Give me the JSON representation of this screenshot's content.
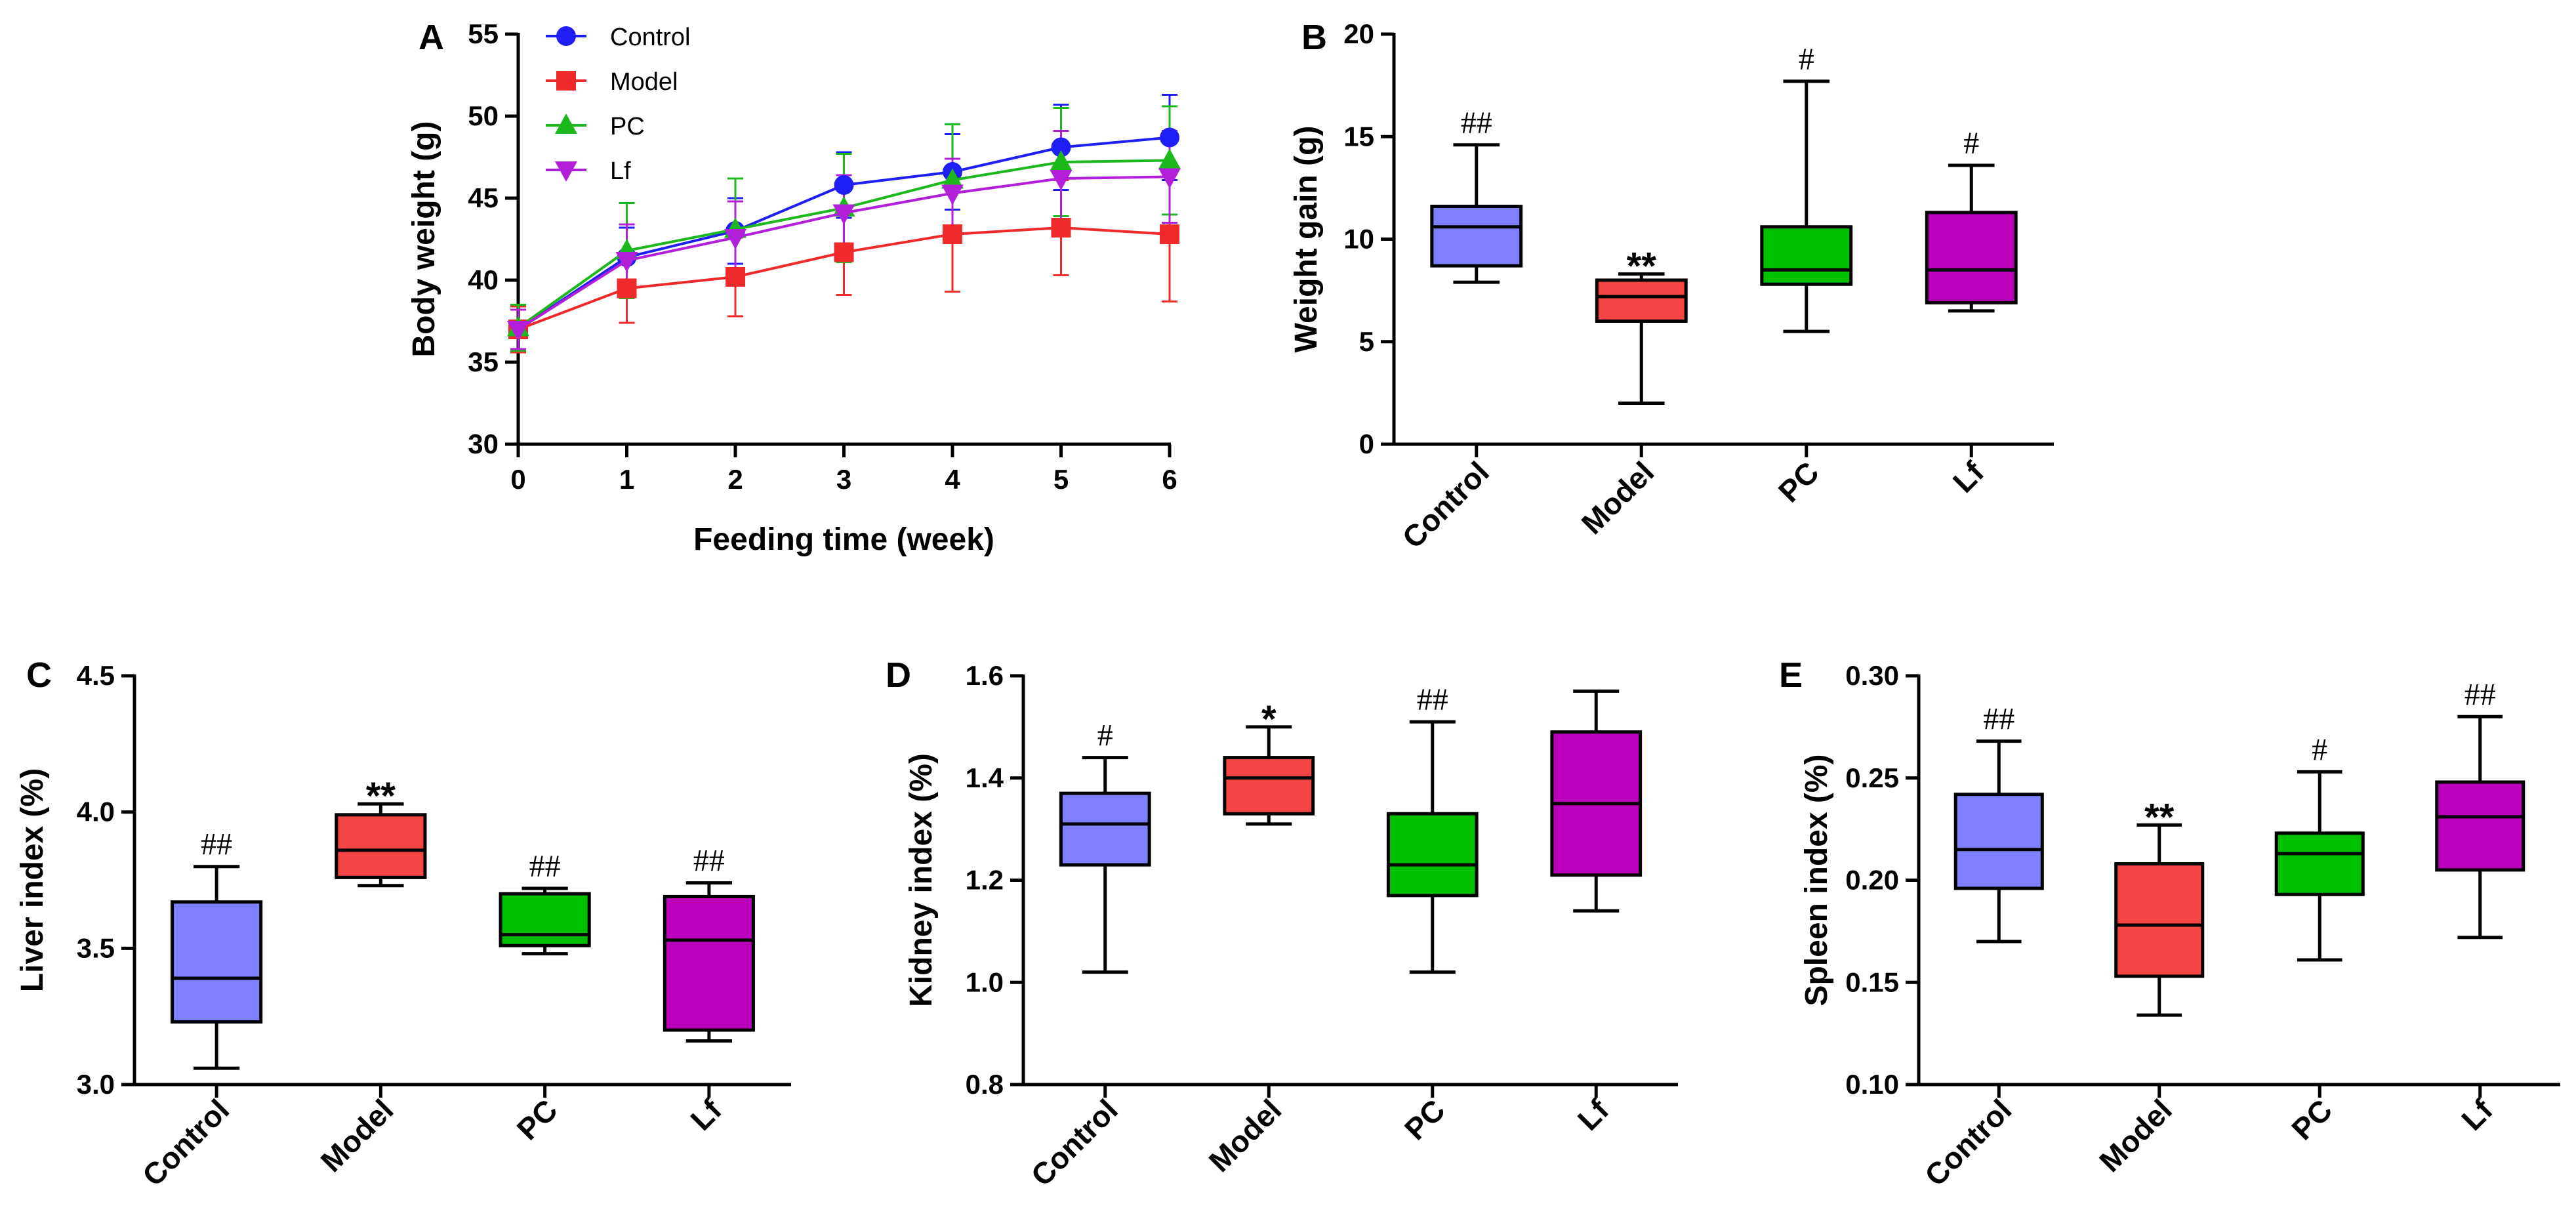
{
  "colors": {
    "Control_line": "#1F1FF5",
    "Model_line": "#EE2A2A",
    "PC_line": "#1DB81D",
    "Lf_line": "#B21FD9",
    "Control_box": "#8080FF",
    "Model_box": "#F54545",
    "PC_box": "#00C000",
    "Lf_box": "#BB00BB"
  },
  "chart_data": [
    {
      "id": "A",
      "panel_label": "A",
      "type": "line",
      "xlabel": "Feeding time (week)",
      "ylabel": "Body weight (g)",
      "xlim": [
        0,
        6
      ],
      "ylim": [
        30,
        55
      ],
      "xticks": [
        "0",
        "1",
        "2",
        "3",
        "4",
        "5",
        "6"
      ],
      "yticks": [
        "30",
        "35",
        "40",
        "45",
        "50",
        "55"
      ],
      "x": [
        0,
        1,
        2,
        3,
        4,
        5,
        6
      ],
      "legend_position": "top-left",
      "series": [
        {
          "name": "Control",
          "marker": "circle",
          "values": [
            37.0,
            41.4,
            43.0,
            45.8,
            46.6,
            48.1,
            48.7
          ],
          "errors": [
            1.2,
            1.8,
            2.0,
            2.0,
            2.3,
            2.6,
            2.6
          ]
        },
        {
          "name": "Model",
          "marker": "square",
          "values": [
            37.0,
            39.5,
            40.2,
            41.7,
            42.8,
            43.2,
            42.8
          ],
          "errors": [
            1.4,
            2.1,
            2.4,
            2.6,
            3.5,
            2.9,
            4.1
          ]
        },
        {
          "name": "PC",
          "marker": "triangle-up",
          "values": [
            37.1,
            41.8,
            43.1,
            44.4,
            46.1,
            47.2,
            47.3
          ],
          "errors": [
            1.4,
            2.9,
            3.1,
            3.3,
            3.4,
            3.3,
            3.3
          ]
        },
        {
          "name": "Lf",
          "marker": "triangle-down",
          "values": [
            37.0,
            41.2,
            42.6,
            44.1,
            45.3,
            46.2,
            46.3
          ],
          "errors": [
            1.2,
            2.2,
            2.2,
            2.3,
            2.1,
            2.9,
            2.8
          ]
        }
      ]
    },
    {
      "id": "B",
      "panel_label": "B",
      "type": "box",
      "ylabel": "Weight gain (g)",
      "ylim": [
        0,
        20
      ],
      "yticks": [
        "0",
        "5",
        "10",
        "15",
        "20"
      ],
      "categories": [
        "Control",
        "Model",
        "PC",
        "Lf"
      ],
      "boxes": [
        {
          "min": 7.9,
          "q1": 8.7,
          "median": 10.6,
          "q3": 11.6,
          "max": 14.6,
          "sig": "##"
        },
        {
          "min": 2.0,
          "q1": 6.0,
          "median": 7.2,
          "q3": 8.0,
          "max": 8.3,
          "sig": "**"
        },
        {
          "min": 5.5,
          "q1": 7.8,
          "median": 8.5,
          "q3": 10.6,
          "max": 17.7,
          "sig": "#"
        },
        {
          "min": 6.5,
          "q1": 6.9,
          "median": 8.5,
          "q3": 11.3,
          "max": 13.6,
          "sig": "#"
        }
      ]
    },
    {
      "id": "C",
      "panel_label": "C",
      "type": "box",
      "ylabel": "Liver index (%)",
      "ylim": [
        3.0,
        4.5
      ],
      "yticks": [
        "3.0",
        "3.5",
        "4.0",
        "4.5"
      ],
      "categories": [
        "Control",
        "Model",
        "PC",
        "Lf"
      ],
      "boxes": [
        {
          "min": 3.06,
          "q1": 3.23,
          "median": 3.39,
          "q3": 3.67,
          "max": 3.8,
          "sig": "##"
        },
        {
          "min": 3.73,
          "q1": 3.76,
          "median": 3.86,
          "q3": 3.99,
          "max": 4.03,
          "sig": "**"
        },
        {
          "min": 3.48,
          "q1": 3.51,
          "median": 3.55,
          "q3": 3.7,
          "max": 3.72,
          "sig": "##"
        },
        {
          "min": 3.16,
          "q1": 3.2,
          "median": 3.53,
          "q3": 3.69,
          "max": 3.74,
          "sig": "##"
        }
      ]
    },
    {
      "id": "D",
      "panel_label": "D",
      "type": "box",
      "ylabel": "Kidney index (%)",
      "ylim": [
        0.8,
        1.6
      ],
      "yticks": [
        "0.8",
        "1.0",
        "1.2",
        "1.4",
        "1.6"
      ],
      "categories": [
        "Control",
        "Model",
        "PC",
        "Lf"
      ],
      "boxes": [
        {
          "min": 1.02,
          "q1": 1.23,
          "median": 1.31,
          "q3": 1.37,
          "max": 1.44,
          "sig": "#"
        },
        {
          "min": 1.31,
          "q1": 1.33,
          "median": 1.4,
          "q3": 1.44,
          "max": 1.5,
          "sig": "*"
        },
        {
          "min": 1.02,
          "q1": 1.17,
          "median": 1.23,
          "q3": 1.33,
          "max": 1.51,
          "sig": "##"
        },
        {
          "min": 1.14,
          "q1": 1.21,
          "median": 1.35,
          "q3": 1.49,
          "max": 1.57,
          "sig": ""
        }
      ]
    },
    {
      "id": "E",
      "panel_label": "E",
      "type": "box",
      "ylabel": "Spleen index (%)",
      "ylim": [
        0.1,
        0.3
      ],
      "yticks": [
        "0.10",
        "0.15",
        "0.20",
        "0.25",
        "0.30"
      ],
      "categories": [
        "Control",
        "Model",
        "PC",
        "Lf"
      ],
      "boxes": [
        {
          "min": 0.17,
          "q1": 0.196,
          "median": 0.215,
          "q3": 0.242,
          "max": 0.268,
          "sig": "##"
        },
        {
          "min": 0.134,
          "q1": 0.153,
          "median": 0.178,
          "q3": 0.208,
          "max": 0.227,
          "sig": "**"
        },
        {
          "min": 0.161,
          "q1": 0.193,
          "median": 0.213,
          "q3": 0.223,
          "max": 0.253,
          "sig": "#"
        },
        {
          "min": 0.172,
          "q1": 0.205,
          "median": 0.231,
          "q3": 0.248,
          "max": 0.28,
          "sig": "##"
        }
      ]
    }
  ]
}
